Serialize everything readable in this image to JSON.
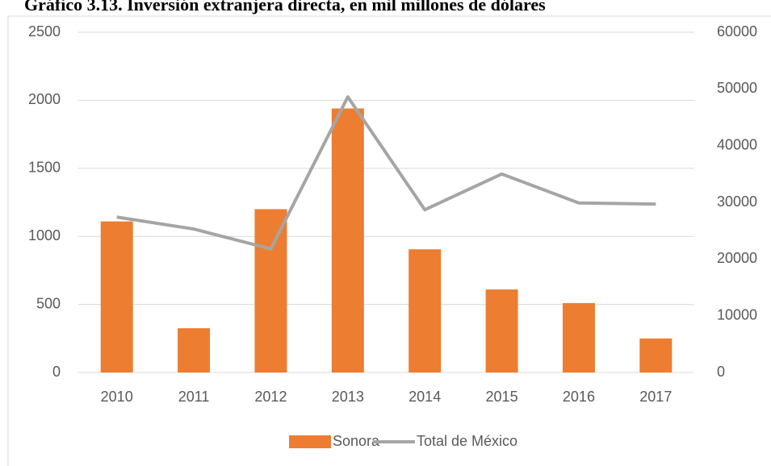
{
  "chart_data": {
    "type": "bar_line",
    "title": "Gráfico 3.13. Inversión extranjera directa, en mil millones de dólares",
    "categories": [
      "2010",
      "2011",
      "2012",
      "2013",
      "2014",
      "2015",
      "2016",
      "2017"
    ],
    "series": [
      {
        "name": "Sonora",
        "color": "#ed7d31",
        "type": "bar",
        "axis": "y",
        "values": [
          1110,
          325,
          1200,
          1940,
          905,
          610,
          510,
          250
        ]
      },
      {
        "name": "Total de México",
        "color": "#a5a5a5",
        "type": "line",
        "axis": "y2",
        "values": [
          27400,
          25300,
          21800,
          48600,
          28700,
          35000,
          29900,
          29700
        ]
      }
    ],
    "ylim": [
      0,
      2500
    ],
    "yticks": [
      0,
      500,
      1000,
      1500,
      2000,
      2500
    ],
    "y2lim": [
      0,
      60000
    ],
    "y2ticks": [
      0,
      10000,
      20000,
      30000,
      40000,
      50000,
      60000
    ],
    "grid": true,
    "legend": "bottom"
  }
}
